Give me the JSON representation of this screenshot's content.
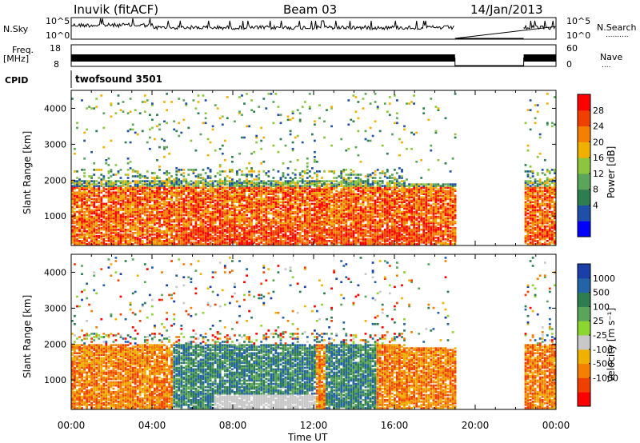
{
  "header": {
    "station": "Inuvik (fitACF)",
    "beam": "Beam 03",
    "date": "14/Jan/2013"
  },
  "noise_panel": {
    "left_label": "N.Sky",
    "left_ticks": [
      "10^5",
      "10^0"
    ],
    "right_ticks": [
      "10^5",
      "10^0"
    ],
    "right_label": "N.Search",
    "right_label_dots": ".........."
  },
  "freq_panel": {
    "left_label_1": "Freq.",
    "left_label_2": "[MHz]",
    "left_ticks": [
      "18",
      "8"
    ],
    "right_ticks": [
      "60",
      "0"
    ],
    "right_label": "Nave",
    "right_label_dots": "...."
  },
  "cpid": {
    "label": "CPID",
    "value": "twofsound 3501"
  },
  "colors": {
    "power_scale": [
      "#0000ff",
      "#1f4fa6",
      "#2e7d4f",
      "#5aa55a",
      "#8cc63f",
      "#f0b000",
      "#f57f00",
      "#f04000",
      "#ff0000"
    ],
    "velocity_scale": [
      "#1a3fa8",
      "#2463a8",
      "#2e7d4f",
      "#5aa55a",
      "#8cd630",
      "#c8c8c8",
      "#f0b000",
      "#f57f00",
      "#f04000",
      "#ff0000"
    ]
  },
  "power_colorbar": {
    "label": "Power [dB]",
    "ticks": [
      "28",
      "24",
      "20",
      "16",
      "12",
      "8",
      "4"
    ]
  },
  "velocity_colorbar": {
    "label": "Velocity  [m s⁻¹]",
    "ticks": [
      "1000",
      "500",
      "100",
      "25",
      "-25",
      "-100",
      "-500",
      "-1000"
    ]
  },
  "chart_data": [
    {
      "type": "line",
      "panel": "noise",
      "x": [
        "00:00",
        "04:00",
        "08:00",
        "12:00",
        "16:00",
        "20:00",
        "00:00"
      ],
      "series": [
        {
          "name": "N.Sky",
          "x": [
            0.0,
            19.0,
            22.4,
            24.0
          ],
          "note_values": "log scale 10^0 to 10^5"
        }
      ],
      "gaps_hours": [
        [
          19.0,
          22.4
        ]
      ],
      "ylabel": "N.Sky",
      "yscale": "log",
      "ylim": [
        1,
        100000
      ]
    },
    {
      "type": "line",
      "panel": "frequency",
      "series": [
        {
          "name": "Freq.",
          "x": [
            0.0,
            19.0,
            22.4,
            24.0
          ]
        }
      ],
      "gaps_hours": [
        [
          19.0,
          22.4
        ]
      ],
      "ylabel": "Freq. [MHz]",
      "ylim": [
        8,
        18
      ]
    },
    {
      "type": "heatmap",
      "panel": "power",
      "xlabel": "",
      "ylabel": "Slant Range [km]",
      "xlim": [
        0,
        24
      ],
      "ylim": [
        180,
        4500
      ],
      "y_ticks": [
        1000,
        2000,
        3000,
        4000
      ],
      "colorbar": {
        "label": "Power [dB]",
        "ticks": [
          4,
          8,
          12,
          16,
          20,
          24,
          28
        ],
        "range": [
          0,
          30
        ]
      },
      "data_gaps_hours": [
        [
          19.0,
          22.4
        ]
      ]
    },
    {
      "type": "heatmap",
      "panel": "velocity",
      "xlabel": "Time UT",
      "ylabel": "Slant Range [km]",
      "x_ticks": [
        "00:00",
        "04:00",
        "08:00",
        "12:00",
        "16:00",
        "20:00",
        "00:00"
      ],
      "xlim": [
        0,
        24
      ],
      "ylim": [
        180,
        4500
      ],
      "y_ticks": [
        1000,
        2000,
        3000,
        4000
      ],
      "colorbar": {
        "label": "Velocity [m s-1]",
        "ticks": [
          1000,
          500,
          100,
          25,
          -25,
          -100,
          -500,
          -1000
        ]
      },
      "data_gaps_hours": [
        [
          19.0,
          22.4
        ]
      ]
    }
  ],
  "x_axis": {
    "ticks": [
      "00:00",
      "04:00",
      "08:00",
      "12:00",
      "16:00",
      "20:00",
      "00:00"
    ],
    "label": "Time UT"
  },
  "y_axis": {
    "label": "Slant Range [km]",
    "ticks": [
      "4000",
      "3000",
      "2000",
      "1000"
    ]
  }
}
